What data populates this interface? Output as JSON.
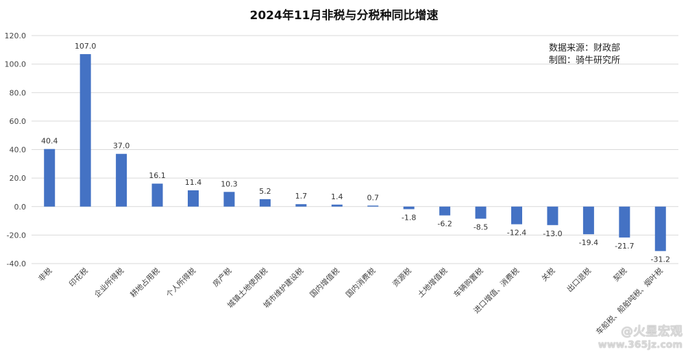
{
  "chart_data": {
    "type": "bar",
    "title": "2024年11月非税与分税种同比增速",
    "categories": [
      "非税",
      "印花税",
      "企业所得税",
      "耕地占用税",
      "个人所得税",
      "房产税",
      "城镇土地使用税",
      "城市维护建设税",
      "国内增值税",
      "国内消费税",
      "资源税",
      "土地增值税",
      "车辆购置税",
      "进口增值、消费税",
      "关税",
      "出口退税",
      "契税",
      "车船税、船舶吨税、烟叶税"
    ],
    "values": [
      40.4,
      107.0,
      37.0,
      16.1,
      11.4,
      10.3,
      5.2,
      1.7,
      1.4,
      0.7,
      -1.8,
      -6.2,
      -8.5,
      -12.4,
      -13.0,
      -19.4,
      -21.7,
      -31.2
    ],
    "data_labels": [
      "40.4",
      "107.0",
      "37.0",
      "16.1",
      "11.4",
      "10.3",
      "5.2",
      "1.7",
      "1.4",
      "0.7",
      "-1.8",
      "-6.2",
      "-8.5",
      "-12.4",
      "-13.0",
      "-19.4",
      "-21.7",
      "-31.2"
    ],
    "ylim": [
      -40,
      120
    ],
    "yticks": [
      "-40.0",
      "-20.0",
      "0.0",
      "20.0",
      "40.0",
      "60.0",
      "80.0",
      "100.0",
      "120.0"
    ],
    "grid": true,
    "bar_color": "#4472c4"
  },
  "source": {
    "line1": "数据来源：财政部",
    "line2": "制图：骑牛研究所"
  },
  "watermark": {
    "line1": "@火星宏观",
    "line2": "www.365jz.com"
  }
}
